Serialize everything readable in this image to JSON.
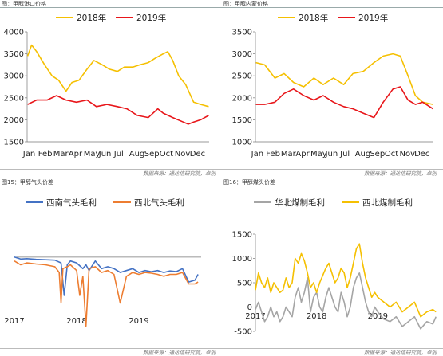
{
  "source_text": "数据来源：通达信研究院，卓创",
  "chart_data": [
    {
      "type": "line",
      "figure_label": "图：",
      "title": "甲醇港口价格",
      "categories": [
        "Jan",
        "Feb",
        "Mar",
        "Apr",
        "May",
        "Jun",
        "Jul",
        "Aug",
        "Sep",
        "Oct",
        "Nov",
        "Dec"
      ],
      "ylim": [
        1500,
        4000
      ],
      "yticks": [
        1500,
        2000,
        2500,
        3000,
        3500,
        4000
      ],
      "grid": false,
      "legend": "top",
      "x_date": true,
      "colors": {
        "2018年": "#F5C002",
        "2019年": "#E8161A"
      },
      "series": [
        {
          "name": "2018年",
          "x": [
            "2018-01-02",
            "2018-01-10",
            "2018-01-20",
            "2018-02-05",
            "2018-02-20",
            "2018-03-05",
            "2018-03-20",
            "2018-04-01",
            "2018-04-15",
            "2018-05-01",
            "2018-05-15",
            "2018-06-01",
            "2018-06-15",
            "2018-07-01",
            "2018-07-15",
            "2018-08-01",
            "2018-08-15",
            "2018-09-01",
            "2018-09-15",
            "2018-10-01",
            "2018-10-10",
            "2018-10-20",
            "2018-11-01",
            "2018-11-15",
            "2018-12-01",
            "2018-12-15",
            "2018-12-31"
          ],
          "values": [
            3450,
            3700,
            3550,
            3250,
            3000,
            2900,
            2650,
            2850,
            2900,
            3150,
            3350,
            3250,
            3150,
            3100,
            3200,
            3200,
            3250,
            3300,
            3400,
            3500,
            3550,
            3350,
            3000,
            2800,
            2400,
            2350,
            2300
          ]
        },
        {
          "name": "2019年",
          "x": [
            "2019-01-02",
            "2019-01-20",
            "2019-02-10",
            "2019-03-01",
            "2019-03-20",
            "2019-04-10",
            "2019-05-01",
            "2019-05-20",
            "2019-06-10",
            "2019-07-01",
            "2019-07-20",
            "2019-08-10",
            "2019-09-01",
            "2019-09-20",
            "2019-10-01",
            "2019-10-20",
            "2019-11-10",
            "2019-11-20",
            "2019-12-01",
            "2019-12-15",
            "2019-12-31"
          ],
          "values": [
            2350,
            2450,
            2450,
            2550,
            2450,
            2400,
            2450,
            2300,
            2350,
            2300,
            2250,
            2100,
            2050,
            2250,
            2150,
            2050,
            1950,
            1900,
            1950,
            2000,
            2100
          ]
        }
      ]
    },
    {
      "type": "line",
      "figure_label": "图：",
      "title": "甲醇内蒙价格",
      "categories": [
        "Jan",
        "Feb",
        "Mar",
        "Apr",
        "May",
        "Jun",
        "Jul",
        "Aug",
        "Sep",
        "Oct",
        "Nov",
        "Dec"
      ],
      "ylim": [
        1000,
        3500
      ],
      "yticks": [
        1000,
        1500,
        2000,
        2500,
        3000,
        3500
      ],
      "grid": false,
      "legend": "top",
      "x_date": true,
      "colors": {
        "2018年": "#F5C002",
        "2019年": "#E8161A"
      },
      "series": [
        {
          "name": "2018年",
          "x": [
            "2018-01-02",
            "2018-01-20",
            "2018-02-10",
            "2018-03-01",
            "2018-03-20",
            "2018-04-10",
            "2018-05-01",
            "2018-05-20",
            "2018-06-10",
            "2018-07-01",
            "2018-07-20",
            "2018-08-10",
            "2018-09-01",
            "2018-09-20",
            "2018-10-10",
            "2018-10-25",
            "2018-11-10",
            "2018-11-25",
            "2018-12-10",
            "2018-12-31"
          ],
          "values": [
            2800,
            2750,
            2450,
            2550,
            2350,
            2250,
            2450,
            2300,
            2450,
            2300,
            2550,
            2600,
            2800,
            2950,
            3000,
            2950,
            2500,
            2050,
            1900,
            1850
          ]
        },
        {
          "name": "2019年",
          "x": [
            "2019-01-02",
            "2019-01-20",
            "2019-02-10",
            "2019-03-01",
            "2019-03-20",
            "2019-04-10",
            "2019-05-01",
            "2019-05-20",
            "2019-06-10",
            "2019-07-01",
            "2019-07-20",
            "2019-08-10",
            "2019-09-01",
            "2019-09-20",
            "2019-10-10",
            "2019-10-25",
            "2019-11-10",
            "2019-11-25",
            "2019-12-10",
            "2019-12-31"
          ],
          "values": [
            1850,
            1850,
            1900,
            2100,
            2200,
            2050,
            1950,
            2050,
            1900,
            1800,
            1750,
            1650,
            1550,
            1900,
            2200,
            2250,
            1950,
            1850,
            1900,
            1750
          ]
        }
      ]
    },
    {
      "type": "line",
      "figure_label": "图15：",
      "title": "甲醇气头价差",
      "categories": [
        "2017",
        "2018",
        "2019"
      ],
      "x_year_start": 2017,
      "x_year_end": 2020,
      "ylim": [
        -2000,
        600
      ],
      "yticks": [],
      "grid": false,
      "legend": "top",
      "colors": {
        "西南气头毛利": "#4472C4",
        "西北气头毛利": "#ED7D31"
      },
      "series": [
        {
          "name": "西南气头毛利",
          "x": [
            2017.0,
            2017.1,
            2017.2,
            2017.35,
            2017.5,
            2017.65,
            2017.75,
            2017.8,
            2017.85,
            2017.9,
            2018.0,
            2018.1,
            2018.15,
            2018.2,
            2018.3,
            2018.4,
            2018.5,
            2018.6,
            2018.7,
            2018.8,
            2018.9,
            2019.0,
            2019.1,
            2019.2,
            2019.3,
            2019.4,
            2019.5,
            2019.6,
            2019.7,
            2019.8,
            2019.9,
            2019.95
          ],
          "values": [
            0,
            -50,
            -40,
            -60,
            -70,
            -80,
            -150,
            -1000,
            -200,
            -100,
            -150,
            -300,
            -200,
            -350,
            -100,
            -300,
            -250,
            -300,
            -400,
            -350,
            -300,
            -400,
            -350,
            -380,
            -350,
            -400,
            -360,
            -380,
            -300,
            -650,
            -600,
            -450
          ]
        },
        {
          "name": "西北气头毛利",
          "x": [
            2017.0,
            2017.1,
            2017.2,
            2017.35,
            2017.5,
            2017.65,
            2017.72,
            2017.75,
            2017.78,
            2017.85,
            2017.9,
            2018.0,
            2018.05,
            2018.1,
            2018.15,
            2018.2,
            2018.3,
            2018.4,
            2018.5,
            2018.6,
            2018.7,
            2018.8,
            2018.9,
            2019.0,
            2019.1,
            2019.2,
            2019.3,
            2019.4,
            2019.5,
            2019.6,
            2019.7,
            2019.8,
            2019.9,
            2019.95
          ],
          "values": [
            -100,
            -200,
            -150,
            -180,
            -200,
            -250,
            -400,
            -1200,
            -300,
            -250,
            -200,
            -350,
            -1000,
            -500,
            -1800,
            -300,
            -250,
            -400,
            -350,
            -450,
            -1200,
            -500,
            -400,
            -450,
            -400,
            -420,
            -450,
            -500,
            -450,
            -450,
            -400,
            -700,
            -700,
            -650
          ]
        }
      ]
    },
    {
      "type": "line",
      "figure_label": "图16：",
      "title": "甲醇煤头价差",
      "categories": [
        "2017",
        "2018",
        "2019"
      ],
      "x_year_start": 2017,
      "x_year_end": 2020,
      "ylim": [
        -500,
        1500
      ],
      "yticks": [
        -500,
        0,
        500,
        1000,
        1500
      ],
      "grid": false,
      "legend": "top",
      "colors": {
        "华北煤制毛利": "#A5A5A5",
        "西北煤制毛利": "#F5C002"
      },
      "series": [
        {
          "name": "华北煤制毛利",
          "x": [
            2017.0,
            2017.05,
            2017.1,
            2017.15,
            2017.2,
            2017.25,
            2017.3,
            2017.35,
            2017.4,
            2017.45,
            2017.5,
            2017.55,
            2017.6,
            2017.65,
            2017.7,
            2017.75,
            2017.8,
            2017.85,
            2017.9,
            2017.95,
            2018.0,
            2018.05,
            2018.1,
            2018.15,
            2018.2,
            2018.25,
            2018.3,
            2018.35,
            2018.4,
            2018.45,
            2018.5,
            2018.55,
            2018.6,
            2018.65,
            2018.7,
            2018.75,
            2018.8,
            2018.85,
            2018.9,
            2018.95,
            2019.0,
            2019.1,
            2019.2,
            2019.3,
            2019.4,
            2019.5,
            2019.6,
            2019.7,
            2019.8,
            2019.9,
            2019.95
          ],
          "values": [
            -50,
            100,
            -100,
            -300,
            -200,
            0,
            -200,
            -100,
            -300,
            -200,
            0,
            -100,
            -200,
            200,
            400,
            100,
            300,
            600,
            -100,
            200,
            300,
            0,
            -100,
            200,
            400,
            200,
            0,
            -100,
            300,
            100,
            -200,
            0,
            400,
            600,
            700,
            400,
            100,
            -100,
            -200,
            0,
            -100,
            -250,
            -300,
            -200,
            -400,
            -300,
            -200,
            -450,
            -300,
            -350,
            -200
          ]
        },
        {
          "name": "西北煤制毛利",
          "x": [
            2017.0,
            2017.05,
            2017.1,
            2017.15,
            2017.2,
            2017.25,
            2017.3,
            2017.35,
            2017.4,
            2017.45,
            2017.5,
            2017.55,
            2017.6,
            2017.65,
            2017.7,
            2017.75,
            2017.8,
            2017.85,
            2017.9,
            2017.95,
            2018.0,
            2018.05,
            2018.1,
            2018.15,
            2018.2,
            2018.25,
            2018.3,
            2018.35,
            2018.4,
            2018.45,
            2018.5,
            2018.55,
            2018.6,
            2018.65,
            2018.7,
            2018.75,
            2018.8,
            2018.85,
            2018.9,
            2018.95,
            2019.0,
            2019.1,
            2019.2,
            2019.3,
            2019.4,
            2019.5,
            2019.6,
            2019.7,
            2019.8,
            2019.9,
            2019.95
          ],
          "values": [
            350,
            700,
            500,
            400,
            600,
            300,
            500,
            400,
            300,
            350,
            600,
            400,
            500,
            1000,
            900,
            1100,
            950,
            700,
            400,
            500,
            300,
            500,
            650,
            800,
            900,
            700,
            500,
            600,
            800,
            700,
            400,
            600,
            900,
            1200,
            1300,
            900,
            600,
            400,
            200,
            300,
            200,
            100,
            0,
            100,
            -100,
            0,
            100,
            -200,
            -100,
            -50,
            -100
          ]
        }
      ]
    }
  ]
}
